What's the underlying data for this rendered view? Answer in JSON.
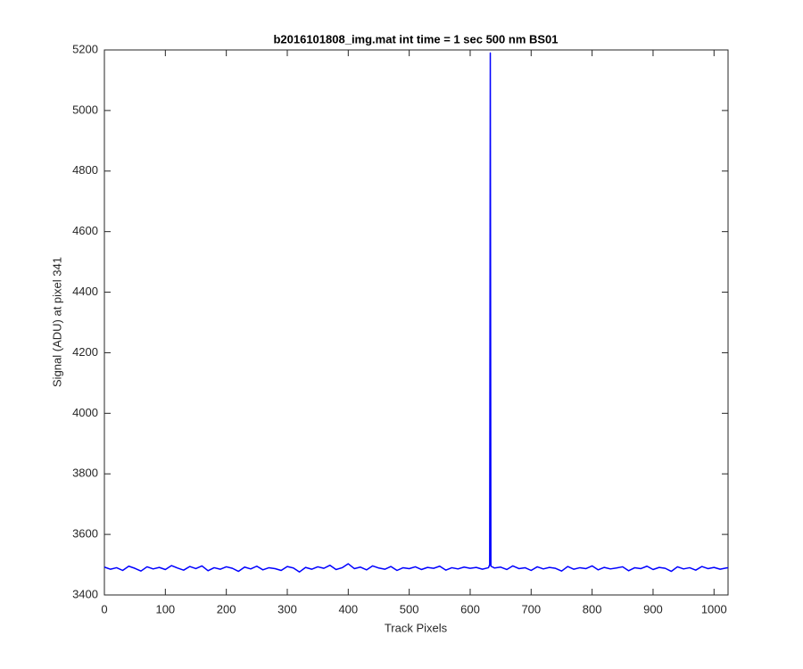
{
  "chart_data": {
    "type": "line",
    "title": "b2016101808_img.mat int time = 1 sec  500 nm BS01",
    "x_label": "Track Pixels",
    "y_label": "Signal (ADU) at pixel 341",
    "xlim": [
      0,
      1023
    ],
    "xticks": [
      0,
      100,
      200,
      300,
      400,
      500,
      600,
      700,
      800,
      900,
      1000
    ],
    "ylim": [
      3400,
      5200
    ],
    "yticks": [
      3400,
      3600,
      3800,
      4000,
      4200,
      4400,
      4600,
      4800,
      5000,
      5200
    ],
    "x": [
      0,
      10,
      20,
      30,
      40,
      50,
      60,
      70,
      80,
      90,
      100,
      110,
      120,
      130,
      140,
      150,
      160,
      170,
      180,
      190,
      200,
      210,
      220,
      230,
      240,
      250,
      260,
      270,
      280,
      290,
      300,
      310,
      320,
      330,
      340,
      350,
      360,
      370,
      380,
      390,
      400,
      410,
      420,
      430,
      440,
      450,
      460,
      470,
      480,
      490,
      500,
      510,
      520,
      530,
      540,
      550,
      560,
      570,
      580,
      590,
      600,
      610,
      620,
      630,
      632,
      633,
      634,
      640,
      650,
      660,
      670,
      680,
      690,
      700,
      710,
      720,
      730,
      740,
      750,
      760,
      770,
      780,
      790,
      800,
      810,
      820,
      830,
      840,
      850,
      860,
      870,
      880,
      890,
      900,
      910,
      920,
      930,
      940,
      950,
      960,
      970,
      980,
      990,
      1000,
      1010,
      1020,
      1023
    ],
    "series": [
      {
        "color": "#0000ff",
        "values": [
          3492,
          3485,
          3490,
          3481,
          3495,
          3488,
          3479,
          3493,
          3486,
          3491,
          3484,
          3497,
          3489,
          3482,
          3494,
          3487,
          3496,
          3480,
          3490,
          3485,
          3493,
          3488,
          3478,
          3492,
          3486,
          3495,
          3483,
          3490,
          3487,
          3481,
          3494,
          3489,
          3476,
          3491,
          3485,
          3493,
          3488,
          3498,
          3484,
          3490,
          3503,
          3487,
          3492,
          3483,
          3496,
          3489,
          3485,
          3494,
          3481,
          3490,
          3487,
          3493,
          3484,
          3491,
          3488,
          3495,
          3482,
          3490,
          3486,
          3492,
          3488,
          3491,
          3485,
          3490,
          3500,
          5190,
          3495,
          3489,
          3492,
          3484,
          3496,
          3487,
          3490,
          3481,
          3493,
          3486,
          3491,
          3488,
          3479,
          3494,
          3485,
          3490,
          3487,
          3496,
          3483,
          3491,
          3486,
          3489,
          3493,
          3480,
          3490,
          3487,
          3495,
          3484,
          3491,
          3488,
          3478,
          3493,
          3486,
          3490,
          3482,
          3494,
          3487,
          3491,
          3485,
          3489,
          3490
        ]
      }
    ]
  }
}
